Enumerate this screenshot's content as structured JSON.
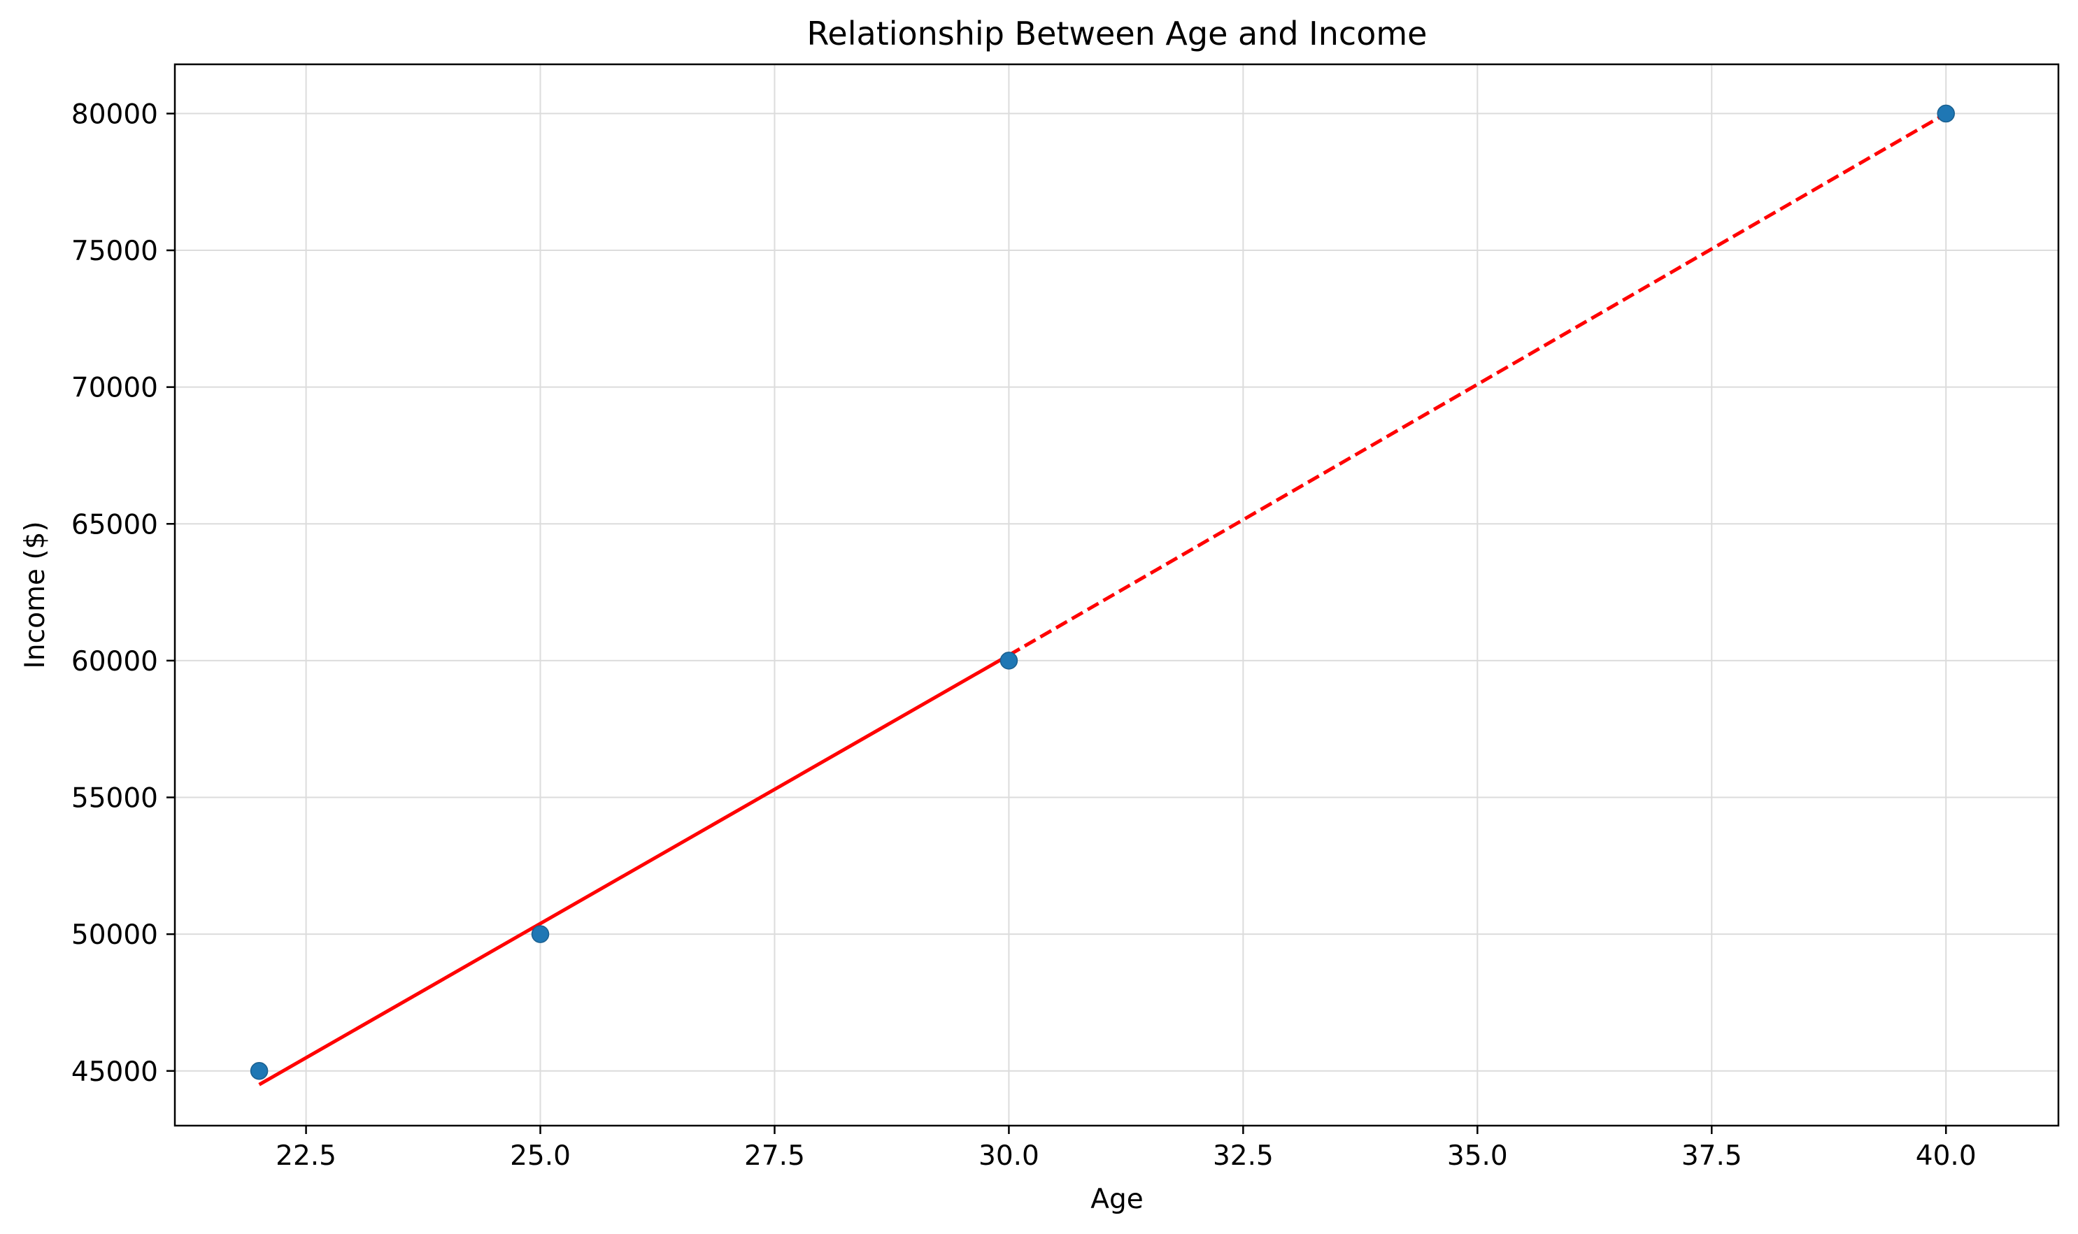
{
  "chart_data": {
    "type": "scatter",
    "title": "Relationship Between Age and Income",
    "xlabel": "Age",
    "ylabel": "Income ($)",
    "xlim": [
      21.1,
      41.2
    ],
    "ylim": [
      43000,
      81800
    ],
    "xticks": [
      22.5,
      25.0,
      27.5,
      30.0,
      32.5,
      35.0,
      37.5,
      40.0
    ],
    "xtick_labels": [
      "22.5",
      "25.0",
      "27.5",
      "30.0",
      "32.5",
      "35.0",
      "37.5",
      "40.0"
    ],
    "yticks": [
      45000,
      50000,
      55000,
      60000,
      65000,
      70000,
      75000,
      80000
    ],
    "ytick_labels": [
      "45000",
      "50000",
      "55000",
      "60000",
      "65000",
      "70000",
      "75000",
      "80000"
    ],
    "grid": true,
    "series": [
      {
        "kind": "points",
        "x": [
          22,
          25,
          30,
          40
        ],
        "y": [
          45000,
          50000,
          60000,
          80000
        ],
        "color": "#1f77b4"
      },
      {
        "kind": "line",
        "style": "solid",
        "x": [
          22,
          30
        ],
        "y": [
          44500,
          60200
        ],
        "color": "#ff0000"
      },
      {
        "kind": "line",
        "style": "dashed",
        "x": [
          30,
          40
        ],
        "y": [
          60200,
          80000
        ],
        "color": "#ff0000"
      }
    ]
  }
}
